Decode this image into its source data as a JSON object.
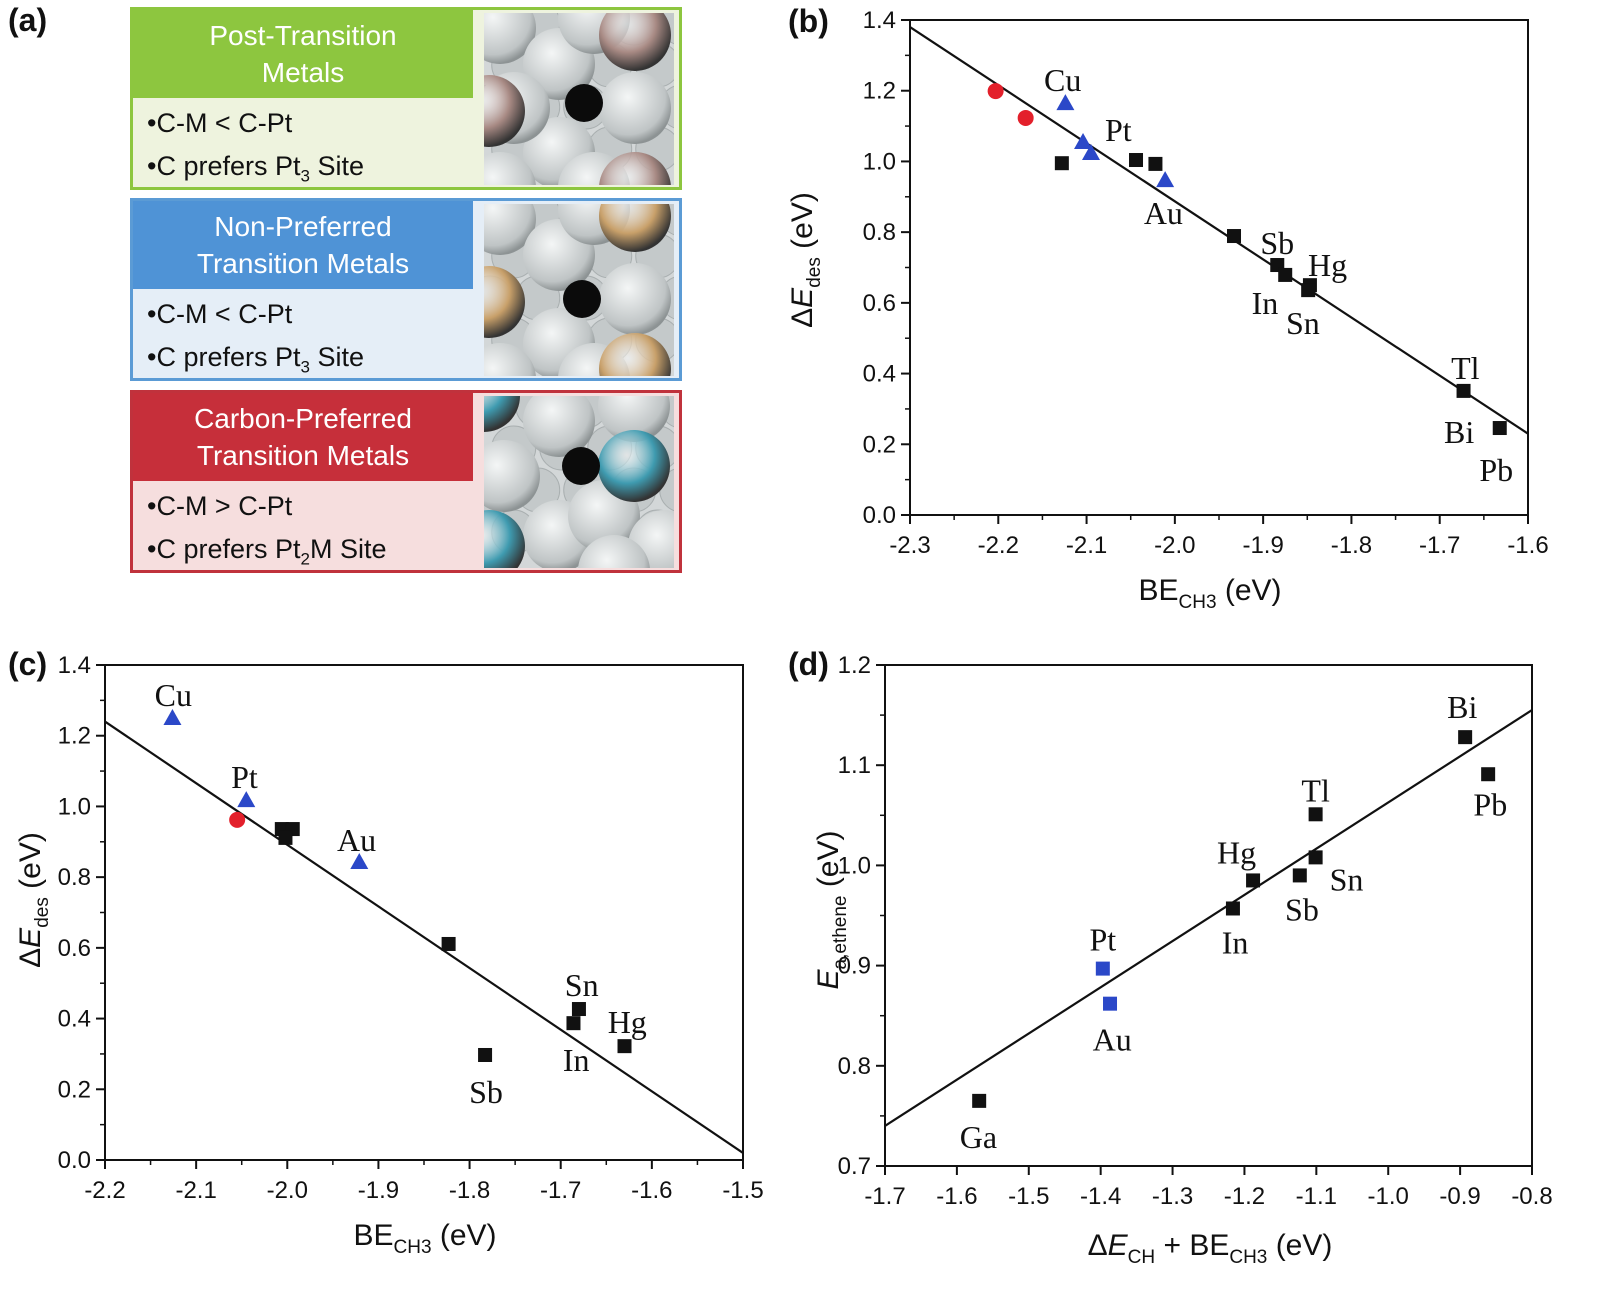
{
  "panel_a": {
    "label": "(a)",
    "boxes": [
      {
        "title_line1": "Post-Transition",
        "title_line2": "Metals",
        "bullet1": "•C-M < C-Pt",
        "bullet2_pre": "•C prefers Pt",
        "bullet2_sub": "3",
        "bullet2_post": " Site",
        "border_color": "#8dc63f",
        "header_color": "#8dc63f",
        "body_color": "#eef3de",
        "accent_atom_color": "#a88a84"
      },
      {
        "title_line1": "Non-Preferred",
        "title_line2": "Transition Metals",
        "bullet1": "•C-M < C-Pt",
        "bullet2_pre": "•C prefers Pt",
        "bullet2_sub": "3",
        "bullet2_post": " Site",
        "border_color": "#5b9bd5",
        "header_color": "#4f93d6",
        "body_color": "#e5eef7",
        "accent_atom_color": "#c8a06a"
      },
      {
        "title_line1": "Carbon-Preferred",
        "title_line2": "Transition Metals",
        "bullet1": "•C-M > C-Pt",
        "bullet2_pre": "•C prefers Pt",
        "bullet2_sub": "2",
        "bullet2_post": "M Site",
        "border_color": "#c0323c",
        "header_color": "#c62f3a",
        "body_color": "#f6dede",
        "accent_atom_color": "#3f9bb0"
      }
    ]
  },
  "colors": {
    "red": "#e3202b",
    "blue": "#2b48c8",
    "black": "#111111",
    "line": "#111111"
  },
  "chart_data": [
    {
      "panel_label": "(b)",
      "type": "scatter",
      "xlabel": [
        {
          "t": "BE"
        },
        {
          "t": "CH3",
          "sub": true
        },
        {
          "t": " (eV)"
        }
      ],
      "ylabel": [
        {
          "t": "Δ"
        },
        {
          "t": "E",
          "i": true
        },
        {
          "t": "des",
          "sub": true
        },
        {
          "t": " (eV)"
        }
      ],
      "xlim": [
        -2.3,
        -1.6
      ],
      "ylim": [
        0.0,
        1.4
      ],
      "xticks": [
        "-2.3",
        "-2.2",
        "-2.1",
        "-2.0",
        "-1.9",
        "-1.8",
        "-1.7",
        "-1.6"
      ],
      "yticks": [
        "0.0",
        "0.2",
        "0.4",
        "0.6",
        "0.8",
        "1.0",
        "1.2",
        "1.4"
      ],
      "grid": false,
      "series": [
        {
          "marker": "circle",
          "color": "red",
          "x": [
            -2.203,
            -2.169
          ],
          "y": [
            1.199,
            1.123
          ]
        },
        {
          "marker": "triangle",
          "color": "blue",
          "x": [
            -2.124,
            -2.104,
            -2.095,
            -2.011
          ],
          "y": [
            1.165,
            1.055,
            1.024,
            0.947
          ]
        },
        {
          "marker": "square",
          "color": "black",
          "x": [
            -2.128,
            -2.044,
            -2.022,
            -1.933,
            -1.884,
            -1.875,
            -1.847,
            -1.849,
            -1.673,
            -1.632
          ],
          "y": [
            0.995,
            1.004,
            0.993,
            0.789,
            0.707,
            0.679,
            0.65,
            0.636,
            0.351,
            0.246
          ]
        }
      ],
      "fit_line": {
        "x": [
          -2.3,
          -1.6
        ],
        "y": [
          1.38,
          0.23
        ]
      },
      "annotations": [
        {
          "text": "Cu",
          "x": -2.127,
          "y": 1.23
        },
        {
          "text": "Pt",
          "x": -2.064,
          "y": 1.089
        },
        {
          "text": "Au",
          "x": -2.013,
          "y": 0.854
        },
        {
          "text": "Sb",
          "x": -1.884,
          "y": 0.769
        },
        {
          "text": "Hg",
          "x": -1.827,
          "y": 0.707
        },
        {
          "text": "In",
          "x": -1.898,
          "y": 0.6
        },
        {
          "text": "Sn",
          "x": -1.855,
          "y": 0.543
        },
        {
          "text": "Tl",
          "x": -1.671,
          "y": 0.416
        },
        {
          "text": "Bi",
          "x": -1.678,
          "y": 0.235
        },
        {
          "text": "Pb",
          "x": -1.636,
          "y": 0.127
        }
      ]
    },
    {
      "panel_label": "(c)",
      "type": "scatter",
      "xlabel": [
        {
          "t": "BE"
        },
        {
          "t": "CH3",
          "sub": true
        },
        {
          "t": " (eV)"
        }
      ],
      "ylabel": [
        {
          "t": "Δ"
        },
        {
          "t": "E",
          "i": true
        },
        {
          "t": "des",
          "sub": true
        },
        {
          "t": " (eV)"
        }
      ],
      "xlim": [
        -2.2,
        -1.5
      ],
      "ylim": [
        0.0,
        1.4
      ],
      "xticks": [
        "-2.2",
        "-2.1",
        "-2.0",
        "-1.9",
        "-1.8",
        "-1.7",
        "-1.6",
        "-1.5"
      ],
      "yticks": [
        "0.0",
        "0.2",
        "0.4",
        "0.6",
        "0.8",
        "1.0",
        "1.2",
        "1.4"
      ],
      "grid": false,
      "series": [
        {
          "marker": "circle",
          "color": "red",
          "x": [
            -2.055
          ],
          "y": [
            0.962
          ]
        },
        {
          "marker": "triangle",
          "color": "blue",
          "x": [
            -2.126,
            -2.045,
            -1.921
          ],
          "y": [
            1.25,
            1.018,
            0.843
          ]
        },
        {
          "marker": "square",
          "color": "black",
          "x": [
            -2.006,
            -1.994,
            -2.002,
            -1.823,
            -1.783,
            -1.686,
            -1.68,
            -1.63
          ],
          "y": [
            0.936,
            0.936,
            0.911,
            0.611,
            0.297,
            0.387,
            0.427,
            0.322
          ]
        }
      ],
      "fit_line": {
        "x": [
          -2.2,
          -1.5
        ],
        "y": [
          1.24,
          0.02
        ]
      },
      "annotations": [
        {
          "text": "Cu",
          "x": -2.125,
          "y": 1.315
        },
        {
          "text": "Pt",
          "x": -2.047,
          "y": 1.083
        },
        {
          "text": "Au",
          "x": -1.924,
          "y": 0.905
        },
        {
          "text": "Sn",
          "x": -1.677,
          "y": 0.495
        },
        {
          "text": "Hg",
          "x": -1.627,
          "y": 0.39
        },
        {
          "text": "In",
          "x": -1.683,
          "y": 0.283
        },
        {
          "text": "Sb",
          "x": -1.782,
          "y": 0.192
        }
      ]
    },
    {
      "panel_label": "(d)",
      "type": "scatter",
      "xlabel": [
        {
          "t": "Δ"
        },
        {
          "t": "E",
          "i": true
        },
        {
          "t": "CH",
          "sub": true
        },
        {
          "t": " + BE"
        },
        {
          "t": "CH3",
          "sub": true
        },
        {
          "t": " (eV)"
        }
      ],
      "ylabel": [
        {
          "t": "E",
          "i": true
        },
        {
          "t": "a,ethene",
          "sub": true
        },
        {
          "t": " (eV)"
        }
      ],
      "xlim": [
        -1.7,
        -0.8
      ],
      "ylim": [
        0.7,
        1.2
      ],
      "xticks": [
        "-1.7",
        "-1.6",
        "-1.5",
        "-1.4",
        "-1.3",
        "-1.2",
        "-1.1",
        "-1.0",
        "-0.9",
        "-0.8"
      ],
      "yticks": [
        "0.7",
        "0.8",
        "0.9",
        "1.0",
        "1.1",
        "1.2"
      ],
      "grid": false,
      "series": [
        {
          "marker": "square",
          "color": "blue",
          "x": [
            -1.397,
            -1.387
          ],
          "y": [
            0.897,
            0.862
          ]
        },
        {
          "marker": "square",
          "color": "black",
          "x": [
            -1.569,
            -1.216,
            -1.188,
            -1.123,
            -1.101,
            -1.101,
            -0.893,
            -0.861
          ],
          "y": [
            0.765,
            0.957,
            0.985,
            0.99,
            1.008,
            1.051,
            1.128,
            1.091
          ]
        }
      ],
      "fit_line": {
        "x": [
          -1.7,
          -0.8
        ],
        "y": [
          0.74,
          1.155
        ]
      },
      "annotations": [
        {
          "text": "Ga",
          "x": -1.57,
          "y": 0.729
        },
        {
          "text": "Pt",
          "x": -1.397,
          "y": 0.926
        },
        {
          "text": "Au",
          "x": -1.384,
          "y": 0.826
        },
        {
          "text": "In",
          "x": -1.213,
          "y": 0.923
        },
        {
          "text": "Hg",
          "x": -1.211,
          "y": 1.013
        },
        {
          "text": "Sb",
          "x": -1.12,
          "y": 0.956
        },
        {
          "text": "Sn",
          "x": -1.058,
          "y": 0.986
        },
        {
          "text": "Tl",
          "x": -1.101,
          "y": 1.075
        },
        {
          "text": "Bi",
          "x": -0.897,
          "y": 1.158
        },
        {
          "text": "Pb",
          "x": -0.858,
          "y": 1.061
        }
      ]
    }
  ]
}
